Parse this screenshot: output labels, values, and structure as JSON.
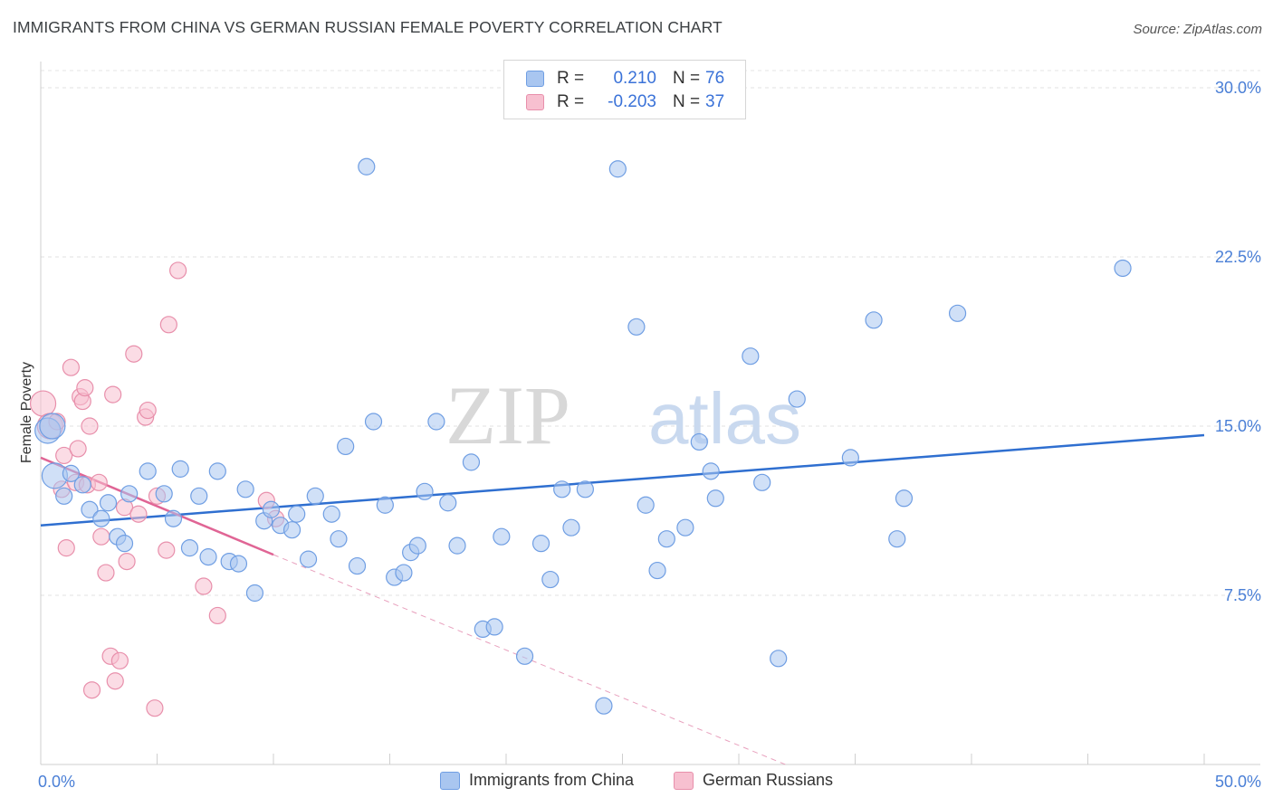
{
  "title": "IMMIGRANTS FROM CHINA VS GERMAN RUSSIAN FEMALE POVERTY CORRELATION CHART",
  "source": "Source: ZipAtlas.com",
  "watermark": {
    "zip": "ZIP",
    "atlas": "atlas"
  },
  "legend": {
    "rows": [
      {
        "r_label": "R =",
        "r_value": "0.210",
        "n_label": "N =",
        "n_value": "76",
        "color": "#a9c6f0",
        "border": "#6f9ee3"
      },
      {
        "r_label": "R =",
        "r_value": "-0.203",
        "n_label": "N =",
        "n_value": "37",
        "color": "#f7c0d0",
        "border": "#e88fab"
      }
    ]
  },
  "bottom_legend": [
    {
      "label": "Immigrants from China",
      "color": "#a9c6f0",
      "border": "#6f9ee3"
    },
    {
      "label": "German Russians",
      "color": "#f7c0d0",
      "border": "#e88fab"
    }
  ],
  "chart_data": {
    "type": "scatter",
    "title": "IMMIGRANTS FROM CHINA VS GERMAN RUSSIAN FEMALE POVERTY CORRELATION CHART",
    "xlabel": "",
    "ylabel": "Female Poverty",
    "xlim": [
      0,
      50
    ],
    "ylim": [
      0,
      30
    ],
    "x_tick_labels": [
      {
        "value": 0,
        "label": "0.0%"
      },
      {
        "value": 50,
        "label": "50.0%"
      }
    ],
    "y_tick_labels": [
      {
        "value": 7.5,
        "label": "7.5%"
      },
      {
        "value": 15,
        "label": "15.0%"
      },
      {
        "value": 22.5,
        "label": "22.5%"
      },
      {
        "value": 30,
        "label": "30.0%"
      }
    ],
    "x_minor_ticks": [
      0,
      5,
      10,
      15,
      20,
      25,
      30,
      35,
      40,
      45,
      50
    ],
    "series": [
      {
        "name": "Immigrants from China",
        "color": "#a9c6f0",
        "stroke": "#6f9ee3",
        "points": [
          [
            0.3,
            14.8
          ],
          [
            0.5,
            15.0
          ],
          [
            0.6,
            12.8
          ],
          [
            1.0,
            11.9
          ],
          [
            1.3,
            12.9
          ],
          [
            1.8,
            12.4
          ],
          [
            2.1,
            11.3
          ],
          [
            2.6,
            10.9
          ],
          [
            2.9,
            11.6
          ],
          [
            3.3,
            10.1
          ],
          [
            3.6,
            9.8
          ],
          [
            3.8,
            12.0
          ],
          [
            4.6,
            13.0
          ],
          [
            5.3,
            12.0
          ],
          [
            5.7,
            10.9
          ],
          [
            6.0,
            13.1
          ],
          [
            6.4,
            9.6
          ],
          [
            6.8,
            11.9
          ],
          [
            7.2,
            9.2
          ],
          [
            7.6,
            13.0
          ],
          [
            8.1,
            9.0
          ],
          [
            8.5,
            8.9
          ],
          [
            8.8,
            12.2
          ],
          [
            9.2,
            7.6
          ],
          [
            9.6,
            10.8
          ],
          [
            9.9,
            11.3
          ],
          [
            10.3,
            10.6
          ],
          [
            10.8,
            10.4
          ],
          [
            11.0,
            11.1
          ],
          [
            11.5,
            9.1
          ],
          [
            11.8,
            11.9
          ],
          [
            12.5,
            11.1
          ],
          [
            12.8,
            10.0
          ],
          [
            13.1,
            14.1
          ],
          [
            13.6,
            8.8
          ],
          [
            14.0,
            26.5
          ],
          [
            14.3,
            15.2
          ],
          [
            14.8,
            11.5
          ],
          [
            15.2,
            8.3
          ],
          [
            15.6,
            8.5
          ],
          [
            15.9,
            9.4
          ],
          [
            16.2,
            9.7
          ],
          [
            16.5,
            12.1
          ],
          [
            17.0,
            15.2
          ],
          [
            17.5,
            11.6
          ],
          [
            17.9,
            9.7
          ],
          [
            18.5,
            13.4
          ],
          [
            19.0,
            6.0
          ],
          [
            19.5,
            6.1
          ],
          [
            19.8,
            10.1
          ],
          [
            20.8,
            4.8
          ],
          [
            21.5,
            9.8
          ],
          [
            21.9,
            8.2
          ],
          [
            22.4,
            12.2
          ],
          [
            22.8,
            10.5
          ],
          [
            23.4,
            12.2
          ],
          [
            24.2,
            2.6
          ],
          [
            24.8,
            26.4
          ],
          [
            25.6,
            19.4
          ],
          [
            26.0,
            11.5
          ],
          [
            26.5,
            8.6
          ],
          [
            26.9,
            10.0
          ],
          [
            27.7,
            10.5
          ],
          [
            28.3,
            14.3
          ],
          [
            28.8,
            13.0
          ],
          [
            29.0,
            11.8
          ],
          [
            30.5,
            18.1
          ],
          [
            31.0,
            12.5
          ],
          [
            31.7,
            4.7
          ],
          [
            32.5,
            16.2
          ],
          [
            34.8,
            13.6
          ],
          [
            35.8,
            19.7
          ],
          [
            36.8,
            10.0
          ],
          [
            37.1,
            11.8
          ],
          [
            39.4,
            20.0
          ],
          [
            46.5,
            22.0
          ]
        ],
        "trend": {
          "x0": 0,
          "y0": 10.6,
          "x1": 50,
          "y1": 14.6
        }
      },
      {
        "name": "German Russians",
        "color": "#f7c0d0",
        "stroke": "#e88fab",
        "points": [
          [
            0.1,
            16.0
          ],
          [
            0.4,
            15.0
          ],
          [
            0.7,
            15.2
          ],
          [
            0.9,
            12.2
          ],
          [
            1.0,
            13.7
          ],
          [
            1.1,
            9.6
          ],
          [
            1.3,
            17.6
          ],
          [
            1.5,
            12.5
          ],
          [
            1.6,
            14.0
          ],
          [
            1.7,
            16.3
          ],
          [
            1.8,
            16.1
          ],
          [
            1.9,
            16.7
          ],
          [
            2.0,
            12.4
          ],
          [
            2.1,
            15.0
          ],
          [
            2.2,
            3.3
          ],
          [
            2.5,
            12.5
          ],
          [
            2.6,
            10.1
          ],
          [
            2.8,
            8.5
          ],
          [
            3.0,
            4.8
          ],
          [
            3.1,
            16.4
          ],
          [
            3.2,
            3.7
          ],
          [
            3.4,
            4.6
          ],
          [
            3.6,
            11.4
          ],
          [
            3.7,
            9.0
          ],
          [
            4.0,
            18.2
          ],
          [
            4.2,
            11.1
          ],
          [
            4.5,
            15.4
          ],
          [
            4.6,
            15.7
          ],
          [
            4.9,
            2.5
          ],
          [
            5.0,
            11.9
          ],
          [
            5.4,
            9.5
          ],
          [
            5.5,
            19.5
          ],
          [
            5.9,
            21.9
          ],
          [
            7.0,
            7.9
          ],
          [
            7.6,
            6.6
          ],
          [
            9.7,
            11.7
          ],
          [
            10.1,
            10.9
          ]
        ],
        "trend": {
          "x0": 0,
          "y0": 13.6,
          "x1": 10.0,
          "y1": 9.3
        },
        "trend_extension": {
          "x0": 10.0,
          "y0": 9.3,
          "x1": 32.0,
          "y1": 0.0
        }
      }
    ]
  }
}
